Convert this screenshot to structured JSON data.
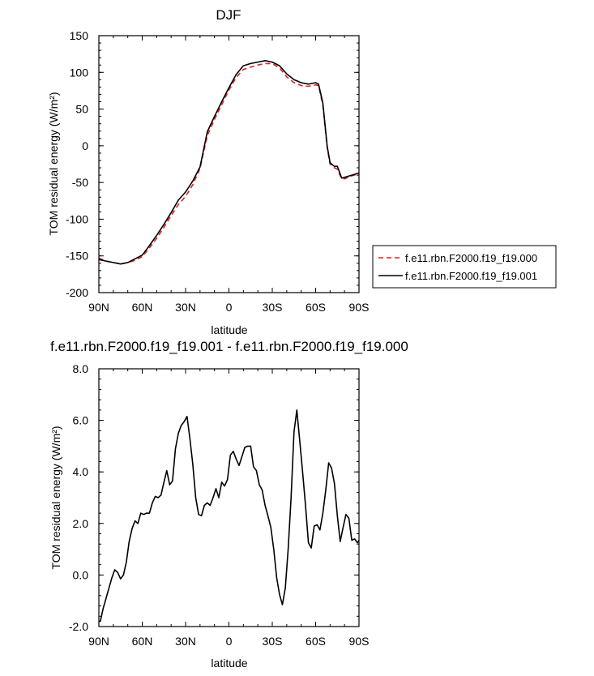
{
  "chart_data": [
    {
      "type": "line",
      "title": "DJF",
      "xlabel": "latitude",
      "ylabel": "TOM residual energy (W/m²)",
      "ylim": [
        -200,
        150
      ],
      "yticks": [
        150,
        100,
        50,
        0,
        -50,
        -100,
        -150,
        -200
      ],
      "xlim": [
        90,
        -90
      ],
      "xticks": [
        {
          "value": 90,
          "label": "90N"
        },
        {
          "value": 60,
          "label": "60N"
        },
        {
          "value": 30,
          "label": "30N"
        },
        {
          "value": 0,
          "label": "0"
        },
        {
          "value": -30,
          "label": "30S"
        },
        {
          "value": -60,
          "label": "60S"
        },
        {
          "value": -90,
          "label": "90S"
        }
      ],
      "legend_position": "right",
      "series": [
        {
          "name": "f.e11.rbn.F2000.f19_f19.000",
          "color": "#e02020",
          "dash": "dashed",
          "x": [
            90,
            85,
            80,
            75,
            70,
            65,
            60,
            55,
            50,
            45,
            40,
            35,
            30,
            25,
            20,
            15,
            10,
            5,
            0,
            -5,
            -10,
            -15,
            -20,
            -25,
            -30,
            -35,
            -40,
            -45,
            -50,
            -55,
            -60,
            -62,
            -65,
            -68,
            -70,
            -73,
            -75,
            -78,
            -80,
            -85,
            -90
          ],
          "y": [
            -153,
            -157,
            -159,
            -161,
            -159,
            -156,
            -151,
            -139,
            -126,
            -111,
            -95,
            -80,
            -69,
            -53,
            -31,
            14,
            36,
            56,
            76,
            93,
            104,
            107,
            110,
            112,
            112,
            106,
            94,
            86,
            82,
            81,
            83,
            82,
            55,
            -3,
            -25,
            -30,
            -32,
            -45,
            -45,
            -41,
            -38
          ]
        },
        {
          "name": "f.e11.rbn.F2000.f19_f19.001",
          "color": "#000000",
          "dash": "solid",
          "x": [
            90,
            85,
            80,
            75,
            70,
            65,
            60,
            55,
            50,
            45,
            40,
            35,
            30,
            25,
            20,
            15,
            10,
            5,
            0,
            -5,
            -10,
            -15,
            -20,
            -25,
            -30,
            -35,
            -40,
            -45,
            -50,
            -55,
            -60,
            -62,
            -65,
            -68,
            -70,
            -73,
            -75,
            -78,
            -80,
            -85,
            -90
          ],
          "y": [
            -155,
            -157,
            -159,
            -161,
            -159,
            -154,
            -149,
            -136,
            -122,
            -107,
            -91,
            -74,
            -63,
            -48,
            -29,
            19,
            40,
            60,
            79,
            97,
            109,
            112,
            114,
            116,
            114,
            109,
            98,
            90,
            86,
            84,
            86,
            84,
            58,
            -1,
            -23,
            -28,
            -28,
            -44,
            -43,
            -40,
            -37
          ]
        }
      ]
    },
    {
      "type": "line",
      "title": "f.e11.rbn.F2000.f19_f19.001 - f.e11.rbn.F2000.f19_f19.000",
      "xlabel": "latitude",
      "ylabel": "TOM residual energy (W/m²)",
      "ylim": [
        -2.0,
        8.0
      ],
      "yticks": [
        {
          "value": 8,
          "label": "8.0"
        },
        {
          "value": 6,
          "label": "6.0"
        },
        {
          "value": 4,
          "label": "4.0"
        },
        {
          "value": 2,
          "label": "2.0"
        },
        {
          "value": 0,
          "label": "0.0"
        },
        {
          "value": -2,
          "label": "-2.0"
        }
      ],
      "xlim": [
        90,
        -90
      ],
      "xticks": [
        {
          "value": 90,
          "label": "90N"
        },
        {
          "value": 60,
          "label": "60N"
        },
        {
          "value": 30,
          "label": "30N"
        },
        {
          "value": 0,
          "label": "0"
        },
        {
          "value": -30,
          "label": "30S"
        },
        {
          "value": -60,
          "label": "60S"
        },
        {
          "value": -90,
          "label": "90S"
        }
      ],
      "series": [
        {
          "color": "#000000",
          "x": [
            90,
            89,
            87,
            85,
            83,
            81,
            79,
            77,
            75,
            73,
            71,
            69,
            67,
            65,
            63,
            61,
            59,
            57,
            55,
            53,
            51,
            49,
            47,
            45,
            43,
            41,
            39,
            37,
            35,
            33,
            31,
            29,
            27,
            25,
            23,
            21,
            19,
            17,
            15,
            13,
            11,
            9,
            7,
            5,
            3,
            1,
            -1,
            -3,
            -5,
            -7,
            -9,
            -11,
            -13,
            -15,
            -17,
            -19,
            -21,
            -23,
            -25,
            -27,
            -29,
            -31,
            -33,
            -35,
            -37,
            -39,
            -41,
            -43,
            -45,
            -47,
            -49,
            -51,
            -53,
            -55,
            -57,
            -59,
            -61,
            -63,
            -65,
            -67,
            -69,
            -71,
            -73,
            -75,
            -77,
            -79,
            -81,
            -83,
            -85,
            -87,
            -89,
            -90
          ],
          "y": [
            -1.8,
            -1.8,
            -1.3,
            -0.9,
            -0.5,
            -0.1,
            0.2,
            0.1,
            -0.15,
            0.0,
            0.5,
            1.3,
            1.8,
            2.1,
            2.0,
            2.4,
            2.35,
            2.4,
            2.4,
            2.8,
            3.05,
            3.0,
            3.1,
            3.6,
            4.05,
            3.5,
            3.65,
            4.9,
            5.5,
            5.8,
            5.95,
            6.15,
            5.3,
            4.3,
            3.0,
            2.35,
            2.3,
            2.7,
            2.8,
            2.7,
            3.0,
            3.35,
            3.0,
            3.6,
            3.45,
            3.7,
            4.65,
            4.8,
            4.5,
            4.25,
            4.6,
            4.95,
            5.0,
            5.0,
            4.2,
            4.05,
            3.5,
            3.3,
            2.7,
            2.3,
            1.85,
            1.0,
            -0.1,
            -0.75,
            -1.15,
            -0.5,
            1.0,
            3.0,
            5.55,
            6.4,
            5.2,
            4.0,
            2.7,
            1.25,
            1.05,
            1.9,
            1.95,
            1.75,
            2.4,
            3.3,
            4.35,
            4.15,
            3.55,
            2.3,
            1.3,
            1.85,
            2.35,
            2.2,
            1.35,
            1.4,
            1.25,
            1.35
          ]
        }
      ]
    }
  ]
}
